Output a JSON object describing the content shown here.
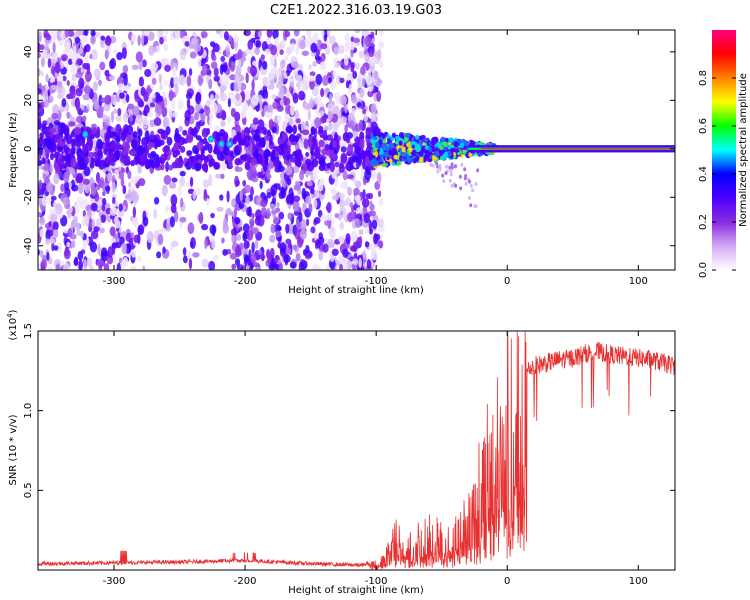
{
  "title": "C2E1.2022.316.03.19.G03",
  "chart_data": [
    {
      "type": "heatmap",
      "xlabel": "Height of straight line (km)",
      "ylabel": "Frequency (Hz)",
      "xlim": [
        -358,
        128
      ],
      "ylim": [
        -50,
        49
      ],
      "xticks": [
        -300,
        -200,
        -100,
        0,
        100
      ],
      "yticks": [
        -40,
        -20,
        0,
        20,
        40
      ],
      "colorbar": {
        "label": "Normalized spectral amplitude",
        "range": [
          0,
          1
        ],
        "ticks": [
          "0.0",
          "0.2",
          "0.4",
          "0.6",
          "0.8"
        ],
        "stops": [
          "#ffffff",
          "#d2a8f4",
          "#8a2be2",
          "#4b00ff",
          "#0000ff",
          "#00ffff",
          "#00ff00",
          "#ffff00",
          "#ff8000",
          "#ff0000",
          "#ff0080"
        ]
      },
      "features": {
        "noise_region_x": [
          -358,
          -96
        ],
        "carrier_region_x": [
          -103,
          128
        ],
        "carrier_freq_hz": 0,
        "carrier_band_hz": [
          -1.5,
          1.5
        ]
      }
    },
    {
      "type": "line",
      "xlabel": "Height of straight line (km)",
      "ylabel": "SNR (10 * v/v)",
      "y_scale_label": "(x10",
      "y_scale_exp": "4",
      "y_scale_close": ")",
      "xlim": [
        -358,
        128
      ],
      "ylim": [
        0,
        1.5
      ],
      "xticks": [
        -300,
        -200,
        -100,
        0,
        100
      ],
      "yticks": [
        0.5,
        1.0,
        1.5
      ],
      "ytick_labels": [
        "0.5",
        "1.0",
        "1.5"
      ],
      "color": "#e83030",
      "envelope": {
        "x": [
          -358,
          -300,
          -250,
          -200,
          -150,
          -110,
          -95,
          -85,
          -75,
          -60,
          -45,
          -35,
          -25,
          -18,
          -12,
          -5,
          0,
          10,
          20,
          30,
          40,
          50,
          60,
          70,
          80,
          90,
          100,
          110,
          128
        ],
        "y": [
          0.04,
          0.045,
          0.05,
          0.06,
          0.04,
          0.03,
          0.07,
          0.25,
          0.2,
          0.28,
          0.22,
          0.35,
          0.55,
          0.7,
          0.95,
          1.05,
          1.12,
          1.22,
          1.28,
          1.3,
          1.32,
          1.33,
          1.36,
          1.37,
          1.35,
          1.34,
          1.33,
          1.32,
          1.28
        ]
      }
    }
  ]
}
